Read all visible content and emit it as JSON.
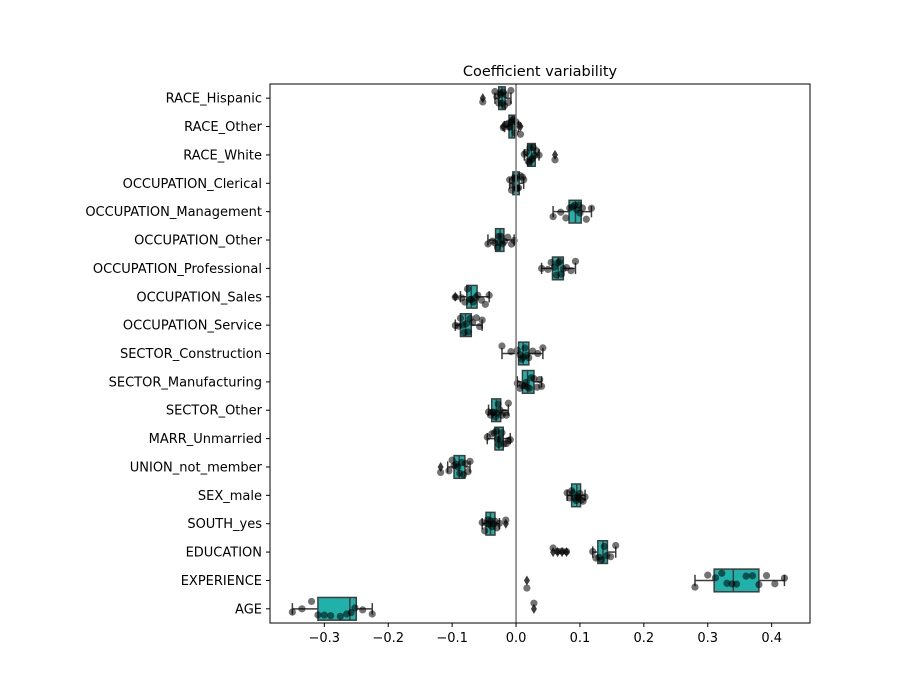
{
  "chart_data": {
    "type": "box",
    "orientation": "horizontal",
    "title": "Coefficient variability",
    "xlabel": "",
    "ylabel": "",
    "xlim": [
      -0.385,
      0.46
    ],
    "xticks": [
      -0.3,
      -0.2,
      -0.1,
      0.0,
      0.1,
      0.2,
      0.3,
      0.4
    ],
    "xtick_labels": [
      "−0.3",
      "−0.2",
      "−0.1",
      "0.0",
      "0.1",
      "0.2",
      "0.3",
      "0.4"
    ],
    "reference_line_x": 0,
    "grid": false,
    "box_color": "#20b2aa",
    "point_color": "#000000",
    "reference_line_color": "#808080",
    "categories": [
      "RACE_Hispanic",
      "RACE_Other",
      "RACE_White",
      "OCCUPATION_Clerical",
      "OCCUPATION_Management",
      "OCCUPATION_Other",
      "OCCUPATION_Professional",
      "OCCUPATION_Sales",
      "OCCUPATION_Service",
      "SECTOR_Construction",
      "SECTOR_Manufacturing",
      "SECTOR_Other",
      "MARR_Unmarried",
      "UNION_not_member",
      "SEX_male",
      "SOUTH_yes",
      "EDUCATION",
      "EXPERIENCE",
      "AGE"
    ],
    "boxes": [
      {
        "name": "RACE_Hispanic",
        "min": -0.033,
        "q1": -0.027,
        "median": -0.022,
        "q3": -0.017,
        "max": -0.008,
        "outliers": [
          -0.052
        ]
      },
      {
        "name": "RACE_Other",
        "min": -0.018,
        "q1": -0.011,
        "median": -0.006,
        "q3": -0.002,
        "max": 0.004,
        "outliers": [
          -0.02,
          0.007
        ]
      },
      {
        "name": "RACE_White",
        "min": 0.013,
        "q1": 0.018,
        "median": 0.024,
        "q3": 0.03,
        "max": 0.036,
        "outliers": [
          0.061
        ]
      },
      {
        "name": "OCCUPATION_Clerical",
        "min": -0.01,
        "q1": -0.005,
        "median": 0.0,
        "q3": 0.005,
        "max": 0.012,
        "outliers": []
      },
      {
        "name": "OCCUPATION_Management",
        "min": 0.058,
        "q1": 0.083,
        "median": 0.093,
        "q3": 0.102,
        "max": 0.118,
        "outliers": []
      },
      {
        "name": "OCCUPATION_Other",
        "min": -0.044,
        "q1": -0.032,
        "median": -0.025,
        "q3": -0.019,
        "max": -0.003,
        "outliers": []
      },
      {
        "name": "OCCUPATION_Professional",
        "min": 0.04,
        "q1": 0.057,
        "median": 0.066,
        "q3": 0.074,
        "max": 0.093,
        "outliers": []
      },
      {
        "name": "OCCUPATION_Sales",
        "min": -0.087,
        "q1": -0.077,
        "median": -0.07,
        "q3": -0.061,
        "max": -0.042,
        "outliers": [
          -0.095
        ]
      },
      {
        "name": "OCCUPATION_Service",
        "min": -0.095,
        "q1": -0.087,
        "median": -0.079,
        "q3": -0.07,
        "max": -0.053,
        "outliers": []
      },
      {
        "name": "SECTOR_Construction",
        "min": -0.022,
        "q1": 0.004,
        "median": 0.011,
        "q3": 0.02,
        "max": 0.042,
        "outliers": []
      },
      {
        "name": "SECTOR_Manufacturing",
        "min": 0.002,
        "q1": 0.01,
        "median": 0.018,
        "q3": 0.028,
        "max": 0.04,
        "outliers": []
      },
      {
        "name": "SECTOR_Other",
        "min": -0.043,
        "q1": -0.038,
        "median": -0.031,
        "q3": -0.024,
        "max": -0.012,
        "outliers": []
      },
      {
        "name": "MARR_Unmarried",
        "min": -0.045,
        "q1": -0.033,
        "median": -0.027,
        "q3": -0.02,
        "max": -0.009,
        "outliers": []
      },
      {
        "name": "UNION_not_member",
        "min": -0.107,
        "q1": -0.097,
        "median": -0.089,
        "q3": -0.08,
        "max": -0.072,
        "outliers": [
          -0.118
        ]
      },
      {
        "name": "SEX_male",
        "min": 0.08,
        "q1": 0.087,
        "median": 0.095,
        "q3": 0.101,
        "max": 0.108,
        "outliers": []
      },
      {
        "name": "SOUTH_yes",
        "min": -0.053,
        "q1": -0.047,
        "median": -0.04,
        "q3": -0.033,
        "max": -0.026,
        "outliers": [
          -0.016
        ]
      },
      {
        "name": "EDUCATION",
        "min": 0.12,
        "q1": 0.128,
        "median": 0.136,
        "q3": 0.143,
        "max": 0.156,
        "outliers": [
          0.058,
          0.065,
          0.072,
          0.079
        ]
      },
      {
        "name": "EXPERIENCE",
        "min": 0.28,
        "q1": 0.31,
        "median": 0.34,
        "q3": 0.38,
        "max": 0.42,
        "outliers": [
          0.017
        ]
      },
      {
        "name": "AGE",
        "min": -0.35,
        "q1": -0.31,
        "median": -0.26,
        "q3": -0.25,
        "max": -0.225,
        "outliers": [
          0.028
        ]
      }
    ],
    "points": [
      [
        -0.052,
        -0.033,
        -0.03,
        -0.027,
        -0.025,
        -0.022,
        -0.02,
        -0.018,
        -0.016,
        -0.012,
        -0.008,
        -0.024
      ],
      [
        -0.02,
        -0.015,
        -0.012,
        -0.009,
        -0.006,
        -0.004,
        -0.002,
        0.0,
        0.004,
        0.007,
        -0.007,
        -0.011
      ],
      [
        0.013,
        0.016,
        0.019,
        0.022,
        0.024,
        0.027,
        0.029,
        0.032,
        0.036,
        0.061,
        0.025,
        0.021
      ],
      [
        -0.01,
        -0.007,
        -0.004,
        -0.002,
        0.0,
        0.002,
        0.004,
        0.007,
        0.01,
        0.012,
        0.001,
        -0.003
      ],
      [
        0.058,
        0.07,
        0.078,
        0.084,
        0.088,
        0.092,
        0.095,
        0.098,
        0.1,
        0.104,
        0.11,
        0.118
      ],
      [
        -0.044,
        -0.037,
        -0.033,
        -0.029,
        -0.026,
        -0.024,
        -0.021,
        -0.018,
        -0.013,
        -0.007,
        -0.003,
        -0.027
      ],
      [
        0.04,
        0.05,
        0.055,
        0.06,
        0.063,
        0.066,
        0.068,
        0.071,
        0.074,
        0.079,
        0.086,
        0.093
      ],
      [
        -0.095,
        -0.085,
        -0.08,
        -0.076,
        -0.072,
        -0.07,
        -0.067,
        -0.063,
        -0.06,
        -0.054,
        -0.048,
        -0.042
      ],
      [
        -0.095,
        -0.09,
        -0.087,
        -0.084,
        -0.081,
        -0.078,
        -0.075,
        -0.072,
        -0.068,
        -0.062,
        -0.057,
        -0.053
      ],
      [
        -0.022,
        -0.008,
        0.002,
        0.006,
        0.009,
        0.011,
        0.014,
        0.017,
        0.02,
        0.026,
        0.034,
        0.042
      ],
      [
        0.002,
        0.006,
        0.01,
        0.013,
        0.016,
        0.018,
        0.021,
        0.024,
        0.028,
        0.033,
        0.037,
        0.04
      ],
      [
        -0.043,
        -0.04,
        -0.037,
        -0.035,
        -0.032,
        -0.03,
        -0.028,
        -0.025,
        -0.022,
        -0.018,
        -0.015,
        -0.012
      ],
      [
        -0.045,
        -0.038,
        -0.034,
        -0.031,
        -0.029,
        -0.027,
        -0.025,
        -0.022,
        -0.019,
        -0.015,
        -0.012,
        -0.009
      ],
      [
        -0.118,
        -0.105,
        -0.1,
        -0.097,
        -0.094,
        -0.091,
        -0.088,
        -0.085,
        -0.082,
        -0.079,
        -0.075,
        -0.072
      ],
      [
        0.08,
        0.084,
        0.087,
        0.089,
        0.092,
        0.094,
        0.096,
        0.098,
        0.1,
        0.102,
        0.105,
        0.108
      ],
      [
        -0.053,
        -0.049,
        -0.046,
        -0.044,
        -0.042,
        -0.04,
        -0.038,
        -0.035,
        -0.033,
        -0.03,
        -0.026,
        -0.016
      ],
      [
        0.058,
        0.065,
        0.072,
        0.079,
        0.12,
        0.125,
        0.13,
        0.134,
        0.138,
        0.142,
        0.148,
        0.156
      ],
      [
        0.017,
        0.28,
        0.3,
        0.312,
        0.322,
        0.33,
        0.338,
        0.345,
        0.36,
        0.37,
        0.38,
        0.392,
        0.405,
        0.42
      ],
      [
        -0.35,
        -0.335,
        -0.32,
        -0.31,
        -0.3,
        -0.29,
        -0.275,
        -0.265,
        -0.258,
        -0.252,
        -0.24,
        -0.225,
        0.028
      ]
    ]
  }
}
